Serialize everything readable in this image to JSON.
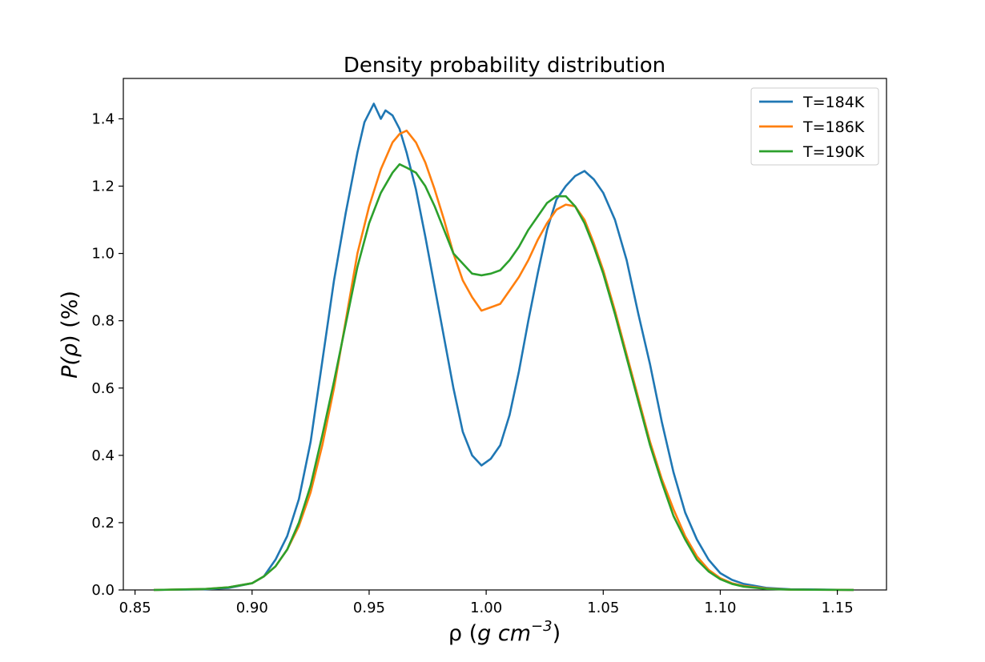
{
  "chart_data": {
    "type": "line",
    "title": "Density probability distribution",
    "xlabel": {
      "prefix": "ρ (",
      "main": "g cm",
      "sup": "−3",
      "suffix": ")"
    },
    "ylabel": {
      "prefix": "P(",
      "main": "ρ",
      "suffix": ") (%)"
    },
    "xlim": [
      0.845,
      1.171
    ],
    "ylim": [
      0.0,
      1.52
    ],
    "xticks": [
      0.85,
      0.9,
      0.95,
      1.0,
      1.05,
      1.1,
      1.15
    ],
    "xtick_labels": [
      "0.85",
      "0.90",
      "0.95",
      "1.00",
      "1.05",
      "1.10",
      "1.15"
    ],
    "yticks": [
      0.0,
      0.2,
      0.4,
      0.6,
      0.8,
      1.0,
      1.2,
      1.4
    ],
    "ytick_labels": [
      "0.0",
      "0.2",
      "0.4",
      "0.6",
      "0.8",
      "1.0",
      "1.2",
      "1.4"
    ],
    "grid": false,
    "legend_position": "top-right",
    "series": [
      {
        "name": "T=184K",
        "color": "#1f77b4",
        "points": [
          [
            0.858,
            0.0
          ],
          [
            0.88,
            0.002
          ],
          [
            0.89,
            0.006
          ],
          [
            0.9,
            0.02
          ],
          [
            0.905,
            0.04
          ],
          [
            0.91,
            0.09
          ],
          [
            0.915,
            0.16
          ],
          [
            0.92,
            0.27
          ],
          [
            0.925,
            0.44
          ],
          [
            0.93,
            0.68
          ],
          [
            0.935,
            0.92
          ],
          [
            0.94,
            1.12
          ],
          [
            0.945,
            1.3
          ],
          [
            0.948,
            1.39
          ],
          [
            0.952,
            1.445
          ],
          [
            0.955,
            1.4
          ],
          [
            0.957,
            1.425
          ],
          [
            0.96,
            1.41
          ],
          [
            0.963,
            1.37
          ],
          [
            0.966,
            1.3
          ],
          [
            0.97,
            1.19
          ],
          [
            0.974,
            1.05
          ],
          [
            0.978,
            0.9
          ],
          [
            0.982,
            0.75
          ],
          [
            0.986,
            0.6
          ],
          [
            0.99,
            0.47
          ],
          [
            0.994,
            0.4
          ],
          [
            0.998,
            0.37
          ],
          [
            1.002,
            0.39
          ],
          [
            1.006,
            0.43
          ],
          [
            1.01,
            0.52
          ],
          [
            1.014,
            0.65
          ],
          [
            1.018,
            0.8
          ],
          [
            1.022,
            0.94
          ],
          [
            1.026,
            1.07
          ],
          [
            1.03,
            1.16
          ],
          [
            1.034,
            1.2
          ],
          [
            1.038,
            1.23
          ],
          [
            1.042,
            1.245
          ],
          [
            1.046,
            1.22
          ],
          [
            1.05,
            1.18
          ],
          [
            1.055,
            1.1
          ],
          [
            1.06,
            0.98
          ],
          [
            1.065,
            0.82
          ],
          [
            1.07,
            0.67
          ],
          [
            1.075,
            0.5
          ],
          [
            1.08,
            0.35
          ],
          [
            1.085,
            0.23
          ],
          [
            1.09,
            0.15
          ],
          [
            1.095,
            0.09
          ],
          [
            1.1,
            0.05
          ],
          [
            1.105,
            0.03
          ],
          [
            1.11,
            0.018
          ],
          [
            1.12,
            0.006
          ],
          [
            1.13,
            0.002
          ],
          [
            1.157,
            0.0
          ]
        ]
      },
      {
        "name": "T=186K",
        "color": "#ff7f0e",
        "points": [
          [
            0.858,
            0.0
          ],
          [
            0.88,
            0.003
          ],
          [
            0.89,
            0.008
          ],
          [
            0.9,
            0.02
          ],
          [
            0.905,
            0.04
          ],
          [
            0.91,
            0.07
          ],
          [
            0.915,
            0.12
          ],
          [
            0.92,
            0.19
          ],
          [
            0.925,
            0.29
          ],
          [
            0.93,
            0.43
          ],
          [
            0.935,
            0.6
          ],
          [
            0.94,
            0.8
          ],
          [
            0.945,
            1.0
          ],
          [
            0.95,
            1.14
          ],
          [
            0.955,
            1.25
          ],
          [
            0.96,
            1.33
          ],
          [
            0.963,
            1.355
          ],
          [
            0.966,
            1.365
          ],
          [
            0.97,
            1.33
          ],
          [
            0.974,
            1.27
          ],
          [
            0.978,
            1.19
          ],
          [
            0.982,
            1.1
          ],
          [
            0.986,
            1.0
          ],
          [
            0.99,
            0.92
          ],
          [
            0.994,
            0.87
          ],
          [
            0.998,
            0.83
          ],
          [
            1.002,
            0.84
          ],
          [
            1.006,
            0.85
          ],
          [
            1.01,
            0.89
          ],
          [
            1.014,
            0.93
          ],
          [
            1.018,
            0.98
          ],
          [
            1.022,
            1.04
          ],
          [
            1.026,
            1.09
          ],
          [
            1.03,
            1.13
          ],
          [
            1.034,
            1.145
          ],
          [
            1.038,
            1.14
          ],
          [
            1.042,
            1.1
          ],
          [
            1.046,
            1.03
          ],
          [
            1.05,
            0.95
          ],
          [
            1.055,
            0.83
          ],
          [
            1.06,
            0.7
          ],
          [
            1.065,
            0.57
          ],
          [
            1.07,
            0.44
          ],
          [
            1.075,
            0.33
          ],
          [
            1.08,
            0.24
          ],
          [
            1.085,
            0.16
          ],
          [
            1.09,
            0.1
          ],
          [
            1.095,
            0.06
          ],
          [
            1.1,
            0.035
          ],
          [
            1.105,
            0.02
          ],
          [
            1.11,
            0.012
          ],
          [
            1.12,
            0.004
          ],
          [
            1.13,
            0.001
          ],
          [
            1.157,
            0.0
          ]
        ]
      },
      {
        "name": "T=190K",
        "color": "#2ca02c",
        "points": [
          [
            0.858,
            0.0
          ],
          [
            0.88,
            0.003
          ],
          [
            0.89,
            0.008
          ],
          [
            0.9,
            0.02
          ],
          [
            0.905,
            0.04
          ],
          [
            0.91,
            0.07
          ],
          [
            0.915,
            0.12
          ],
          [
            0.92,
            0.2
          ],
          [
            0.925,
            0.31
          ],
          [
            0.93,
            0.46
          ],
          [
            0.935,
            0.62
          ],
          [
            0.94,
            0.79
          ],
          [
            0.945,
            0.96
          ],
          [
            0.95,
            1.09
          ],
          [
            0.955,
            1.18
          ],
          [
            0.96,
            1.24
          ],
          [
            0.963,
            1.265
          ],
          [
            0.966,
            1.255
          ],
          [
            0.97,
            1.24
          ],
          [
            0.974,
            1.2
          ],
          [
            0.978,
            1.14
          ],
          [
            0.982,
            1.07
          ],
          [
            0.986,
            1.0
          ],
          [
            0.99,
            0.97
          ],
          [
            0.994,
            0.94
          ],
          [
            0.998,
            0.935
          ],
          [
            1.002,
            0.94
          ],
          [
            1.006,
            0.95
          ],
          [
            1.01,
            0.98
          ],
          [
            1.014,
            1.02
          ],
          [
            1.018,
            1.07
          ],
          [
            1.022,
            1.11
          ],
          [
            1.026,
            1.15
          ],
          [
            1.03,
            1.17
          ],
          [
            1.034,
            1.17
          ],
          [
            1.038,
            1.14
          ],
          [
            1.042,
            1.09
          ],
          [
            1.046,
            1.02
          ],
          [
            1.05,
            0.94
          ],
          [
            1.055,
            0.82
          ],
          [
            1.06,
            0.69
          ],
          [
            1.065,
            0.56
          ],
          [
            1.07,
            0.43
          ],
          [
            1.075,
            0.32
          ],
          [
            1.08,
            0.22
          ],
          [
            1.085,
            0.15
          ],
          [
            1.09,
            0.09
          ],
          [
            1.095,
            0.055
          ],
          [
            1.1,
            0.032
          ],
          [
            1.105,
            0.018
          ],
          [
            1.11,
            0.01
          ],
          [
            1.12,
            0.003
          ],
          [
            1.13,
            0.001
          ],
          [
            1.157,
            0.0
          ]
        ]
      }
    ]
  }
}
